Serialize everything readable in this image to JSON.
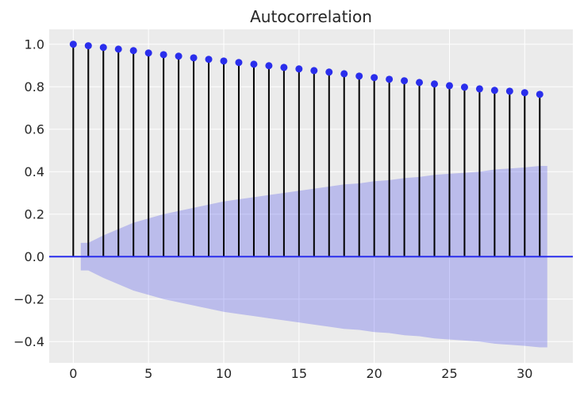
{
  "chart_data": {
    "type": "stem",
    "title": "Autocorrelation",
    "xlabel": "",
    "ylabel": "",
    "xlim": [
      -1.6,
      33.2
    ],
    "ylim": [
      -0.5,
      1.07
    ],
    "xticks": [
      0,
      5,
      10,
      15,
      20,
      25,
      30
    ],
    "yticks": [
      -0.4,
      -0.2,
      0.0,
      0.2,
      0.4,
      0.6,
      0.8,
      1.0
    ],
    "ytick_labels": [
      "−0.4",
      "−0.2",
      "0.0",
      "0.2",
      "0.4",
      "0.6",
      "0.8",
      "1.0"
    ],
    "grid": true,
    "lags": [
      0,
      1,
      2,
      3,
      4,
      5,
      6,
      7,
      8,
      9,
      10,
      11,
      12,
      13,
      14,
      15,
      16,
      17,
      18,
      19,
      20,
      21,
      22,
      23,
      24,
      25,
      26,
      27,
      28,
      29,
      30,
      31
    ],
    "acf": [
      1.0,
      0.993,
      0.985,
      0.977,
      0.97,
      0.959,
      0.951,
      0.944,
      0.936,
      0.929,
      0.921,
      0.914,
      0.906,
      0.899,
      0.891,
      0.884,
      0.876,
      0.869,
      0.861,
      0.85,
      0.843,
      0.835,
      0.828,
      0.82,
      0.813,
      0.805,
      0.798,
      0.79,
      0.783,
      0.779,
      0.772,
      0.764
    ],
    "confidence_band": {
      "lags": [
        1,
        2,
        3,
        4,
        5,
        6,
        7,
        8,
        9,
        10,
        11,
        12,
        13,
        14,
        15,
        16,
        17,
        18,
        19,
        20,
        21,
        22,
        23,
        24,
        25,
        26,
        27,
        28,
        29,
        30,
        31
      ],
      "upper": [
        0.065,
        0.1,
        0.13,
        0.16,
        0.18,
        0.2,
        0.215,
        0.23,
        0.245,
        0.26,
        0.27,
        0.28,
        0.29,
        0.3,
        0.31,
        0.32,
        0.33,
        0.34,
        0.345,
        0.355,
        0.36,
        0.37,
        0.375,
        0.385,
        0.39,
        0.395,
        0.4,
        0.41,
        0.415,
        0.42,
        0.427
      ]
    },
    "colors": {
      "background": "#ebebeb",
      "marker": "#2a2eec",
      "stem": "#000000",
      "zero_line": "#2a2eec",
      "band": "#2a2eec"
    }
  }
}
